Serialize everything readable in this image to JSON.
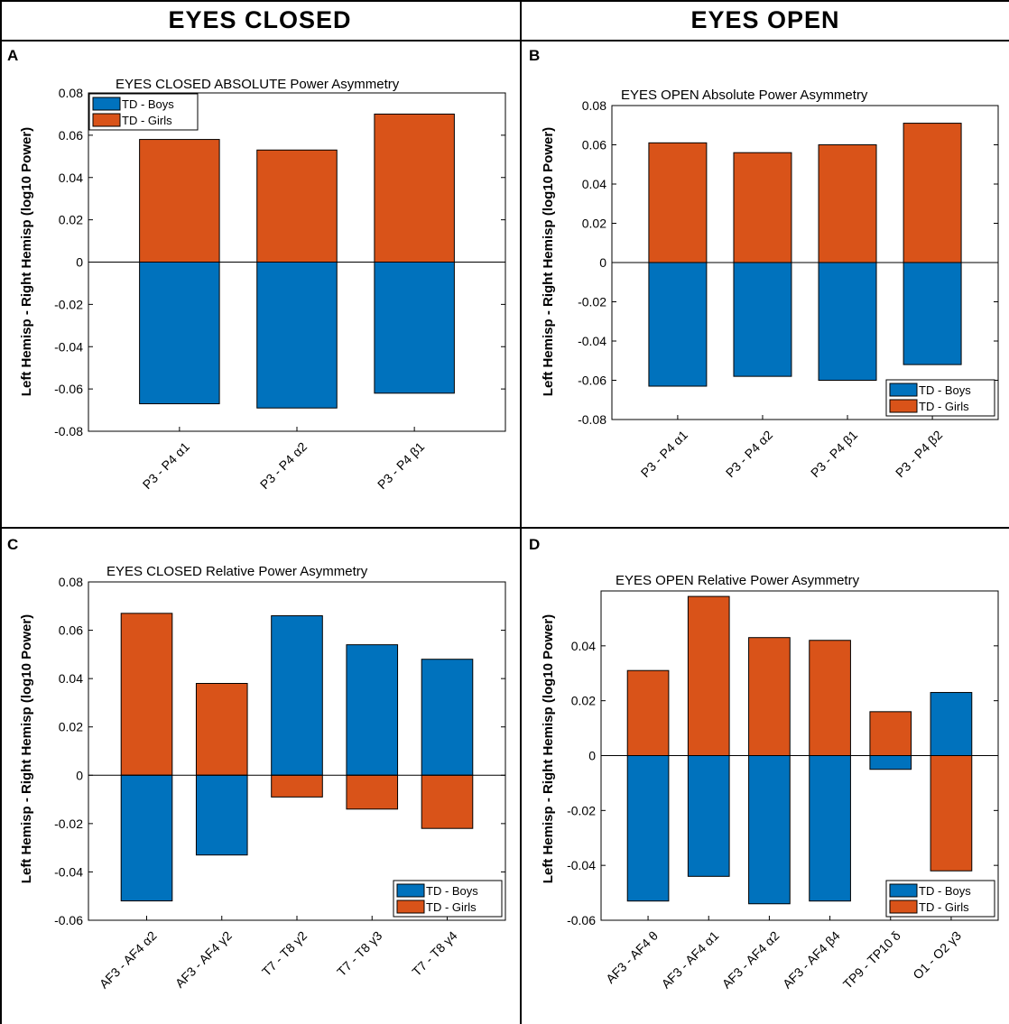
{
  "headers": {
    "left": "EYES  CLOSED",
    "right": "EYES  OPEN"
  },
  "colors": {
    "boys": "#0072BD",
    "girls": "#D95319"
  },
  "legend_labels": {
    "boys": "TD - Boys",
    "girls": "TD - Girls"
  },
  "chart_data": [
    {
      "panel": "A",
      "type": "bar",
      "title": "EYES CLOSED     ABSOLUTE     Power  Asymmetry",
      "ylabel": "Left  Hemisp  -  Right  Hemisp    (log10 Power)",
      "xlabel": "",
      "ylim": [
        -0.08,
        0.08
      ],
      "yticks": [
        0.08,
        0.06,
        0.04,
        0.02,
        0,
        -0.02,
        -0.04,
        -0.06,
        -0.08
      ],
      "ytick_labels": [
        "0.08",
        "0.06",
        "0.04",
        "0.02",
        "0",
        "-0.02",
        "-0.04",
        "-0.06",
        "-0.08"
      ],
      "categories": [
        "P3 - P4      α1",
        "P3 - P4      α2",
        "P3 - P4      β1"
      ],
      "series": [
        {
          "name": "TD - Boys",
          "values": [
            -0.067,
            -0.069,
            -0.062
          ]
        },
        {
          "name": "TD - Girls",
          "values": [
            0.058,
            0.053,
            0.07
          ]
        }
      ],
      "legend": "top-left",
      "grid": false
    },
    {
      "panel": "B",
      "type": "bar",
      "title": "EYES OPEN  Absolute  Power Asymmetry",
      "ylabel": "Left  Hemisp  -  Right  Hemisp    (log10 Power)",
      "xlabel": "",
      "ylim": [
        -0.08,
        0.08
      ],
      "yticks": [
        0.08,
        0.06,
        0.04,
        0.02,
        0,
        -0.02,
        -0.04,
        -0.06,
        -0.08
      ],
      "ytick_labels": [
        "0.08",
        "0.06",
        "0.04",
        "0.02",
        "0",
        "-0.02",
        "-0.04",
        "-0.06",
        "-0.08"
      ],
      "categories": [
        "P3 - P4      α1",
        "P3 - P4      α2",
        "P3 - P4      β1",
        "P3 - P4      β2"
      ],
      "series": [
        {
          "name": "TD - Boys",
          "values": [
            -0.063,
            -0.058,
            -0.06,
            -0.052
          ]
        },
        {
          "name": "TD - Girls",
          "values": [
            0.061,
            0.056,
            0.06,
            0.071
          ]
        }
      ],
      "legend": "bottom-right",
      "grid": false
    },
    {
      "panel": "C",
      "type": "bar",
      "title": "EYES CLOSED     Relative     Power  Asymmetry",
      "ylabel": "Left  Hemisp  -  Right  Hemisp    (log10 Power)",
      "xlabel": "",
      "ylim": [
        -0.06,
        0.08
      ],
      "yticks": [
        0.08,
        0.06,
        0.04,
        0.02,
        0,
        -0.02,
        -0.04,
        -0.06
      ],
      "ytick_labels": [
        "0.08",
        "0.06",
        "0.04",
        "0.02",
        "0",
        "-0.02",
        "-0.04",
        "-0.06"
      ],
      "categories": [
        "AF3 - AF4      α2",
        "AF3 - AF4      γ2",
        "T7 - T8      γ2",
        "T7 - T8      γ3",
        "T7 - T8      γ4"
      ],
      "series": [
        {
          "name": "TD - Boys",
          "values": [
            -0.052,
            -0.033,
            0.066,
            0.054,
            0.048
          ]
        },
        {
          "name": "TD - Girls",
          "values": [
            0.067,
            0.038,
            -0.009,
            -0.014,
            -0.022
          ]
        }
      ],
      "legend": "bottom-right",
      "grid": false
    },
    {
      "panel": "D",
      "type": "bar",
      "title": "EYES OPEN    Relative    Power Asymmetry",
      "ylabel": "Left  Hemisp  -  Right  Hemisp    (log10 Power)",
      "xlabel": "",
      "ylim": [
        -0.06,
        0.06
      ],
      "yticks": [
        0.04,
        0.02,
        0,
        -0.02,
        -0.04,
        -0.06
      ],
      "ytick_labels": [
        "0.04",
        "0.02",
        "0",
        "-0.02",
        "-0.04",
        "-0.06"
      ],
      "categories": [
        "AF3 - AF4      θ",
        "AF3 - AF4      α1",
        "AF3 - AF4      α2",
        "AF3 - AF4      β4",
        "TP9 - TP10      δ",
        "O1 - O2      γ3"
      ],
      "series": [
        {
          "name": "TD - Boys",
          "values": [
            -0.053,
            -0.044,
            -0.054,
            -0.053,
            -0.005,
            0.023
          ]
        },
        {
          "name": "TD - Girls",
          "values": [
            0.031,
            0.058,
            0.043,
            0.042,
            0.016,
            -0.042
          ]
        }
      ],
      "legend": "bottom-right",
      "grid": false
    }
  ]
}
